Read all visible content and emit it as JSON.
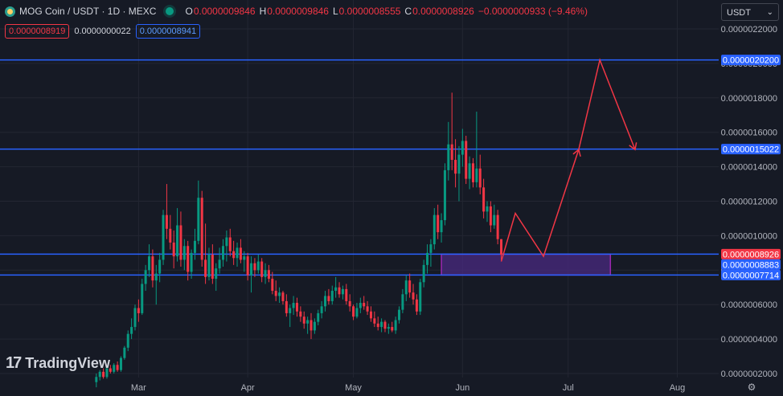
{
  "header": {
    "title": "MOG Coin / USDT · 1D · MEXC",
    "ohlc": [
      {
        "label": "O",
        "value": "0.0000009846"
      },
      {
        "label": "H",
        "value": "0.0000009846"
      },
      {
        "label": "L",
        "value": "0.0000008555"
      },
      {
        "label": "C",
        "value": "0.0000008926"
      }
    ],
    "change": "−0.0000000933 (−9.46%)",
    "bid": "0.0000008919",
    "spread": "0.0000000022",
    "ask": "0.0000008941"
  },
  "currency_select": "USDT",
  "watermark": "TradingView",
  "colors": {
    "up": "#089981",
    "down": "#f23645",
    "hline": "#2962ff",
    "zone_fill": "#4a2a80",
    "zone_border": "#9c27b0",
    "arrow": "#f23645",
    "background": "#161a25",
    "grid": "#232632"
  },
  "chart_data": {
    "type": "candlestick",
    "x_labels": [
      "Mar",
      "Apr",
      "May",
      "Jun",
      "Jul",
      "Aug"
    ],
    "y_ticks": [
      "0.0000022000",
      "0.0000020000",
      "0.0000018000",
      "0.0000016000",
      "0.0000014000",
      "0.0000012000",
      "0.0000010000",
      "0.0000008000",
      "0.0000006000",
      "0.0000004000",
      "0.0000002000"
    ],
    "y_tick_values": [
      2.2e-06,
      2e-06,
      1.8e-06,
      1.6e-06,
      1.4e-06,
      1.2e-06,
      1e-06,
      8e-07,
      6e-07,
      4e-07,
      2e-07
    ],
    "ylim": [
      1e-07,
      2.2e-06
    ],
    "price_labels": [
      {
        "value": 2.02e-06,
        "text": "0.0000020200",
        "color": "#2962ff"
      },
      {
        "value": 1.5022e-06,
        "text": "0.0000015022",
        "color": "#2962ff"
      },
      {
        "value": 8.926e-07,
        "text": "0.0000008926",
        "color": "#f23645"
      },
      {
        "value": 8.883e-07,
        "text": "0.0000008883",
        "color": "#2962ff"
      },
      {
        "value": 7.714e-07,
        "text": "0.0000007714",
        "color": "#2962ff"
      }
    ],
    "horizontal_lines": [
      2.02e-06,
      1.5022e-06,
      8.926e-07,
      7.714e-07
    ],
    "zone": {
      "from": "2024-05-26",
      "to": "2024-07-13",
      "top": 8.926e-07,
      "bottom": 7.714e-07
    },
    "projection_path": [
      [
        "2024-06-12",
        8.5e-07
      ],
      [
        "2024-06-16",
        1.13e-06
      ],
      [
        "2024-06-24",
        8.8e-07
      ],
      [
        "2024-07-04",
        1.5e-06
      ],
      [
        "2024-07-10",
        2.02e-06
      ],
      [
        "2024-07-20",
        1.5e-06
      ]
    ],
    "projection_arrows": [
      [
        "2024-06-24",
        8.8e-07,
        "2024-07-04",
        1.5e-06
      ],
      [
        "2024-07-10",
        2.02e-06,
        "2024-07-20",
        1.5e-06
      ]
    ],
    "candles": [
      {
        "date": "2024-02-18",
        "o": 1.5e-07,
        "h": 2e-07,
        "l": 1.2e-07,
        "c": 1.8e-07
      },
      {
        "date": "2024-02-19",
        "o": 1.8e-07,
        "h": 2.2e-07,
        "l": 1.6e-07,
        "c": 2.1e-07
      },
      {
        "date": "2024-02-20",
        "o": 2.1e-07,
        "h": 2.3e-07,
        "l": 1.7e-07,
        "c": 1.8e-07
      },
      {
        "date": "2024-02-21",
        "o": 1.8e-07,
        "h": 2.4e-07,
        "l": 1.7e-07,
        "c": 2.3e-07
      },
      {
        "date": "2024-02-22",
        "o": 2.3e-07,
        "h": 2.5e-07,
        "l": 2e-07,
        "c": 2.1e-07
      },
      {
        "date": "2024-02-23",
        "o": 2.1e-07,
        "h": 2.6e-07,
        "l": 2e-07,
        "c": 2.5e-07
      },
      {
        "date": "2024-02-24",
        "o": 2.5e-07,
        "h": 2.7e-07,
        "l": 2.1e-07,
        "c": 2.2e-07
      },
      {
        "date": "2024-02-25",
        "o": 2.2e-07,
        "h": 3e-07,
        "l": 2.1e-07,
        "c": 2.9e-07
      },
      {
        "date": "2024-02-26",
        "o": 2.9e-07,
        "h": 3.6e-07,
        "l": 2.8e-07,
        "c": 3.5e-07
      },
      {
        "date": "2024-02-27",
        "o": 3.5e-07,
        "h": 4.5e-07,
        "l": 3.3e-07,
        "c": 4.3e-07
      },
      {
        "date": "2024-02-28",
        "o": 4.3e-07,
        "h": 5.2e-07,
        "l": 4e-07,
        "c": 4.7e-07
      },
      {
        "date": "2024-02-29",
        "o": 4.7e-07,
        "h": 6e-07,
        "l": 4.5e-07,
        "c": 5.8e-07
      },
      {
        "date": "2024-03-01",
        "o": 5.8e-07,
        "h": 6.3e-07,
        "l": 5e-07,
        "c": 5.5e-07
      },
      {
        "date": "2024-03-02",
        "o": 5.5e-07,
        "h": 7.5e-07,
        "l": 5.4e-07,
        "c": 7.2e-07
      },
      {
        "date": "2024-03-03",
        "o": 7.2e-07,
        "h": 8.3e-07,
        "l": 6.8e-07,
        "c": 8e-07
      },
      {
        "date": "2024-03-04",
        "o": 8e-07,
        "h": 9.5e-07,
        "l": 7.6e-07,
        "c": 8.8e-07
      },
      {
        "date": "2024-03-05",
        "o": 8.8e-07,
        "h": 9.2e-07,
        "l": 7e-07,
        "c": 7.4e-07
      },
      {
        "date": "2024-03-06",
        "o": 7.4e-07,
        "h": 8.3e-07,
        "l": 6e-07,
        "c": 7.8e-07
      },
      {
        "date": "2024-03-07",
        "o": 7.8e-07,
        "h": 9e-07,
        "l": 7.3e-07,
        "c": 8.6e-07
      },
      {
        "date": "2024-03-08",
        "o": 8.6e-07,
        "h": 1.15e-06,
        "l": 8.3e-07,
        "c": 1.12e-06
      },
      {
        "date": "2024-03-09",
        "o": 1.12e-06,
        "h": 1.3e-06,
        "l": 9.8e-07,
        "c": 1.04e-06
      },
      {
        "date": "2024-03-10",
        "o": 1.04e-06,
        "h": 1.12e-06,
        "l": 9.2e-07,
        "c": 9.6e-07
      },
      {
        "date": "2024-03-11",
        "o": 9.6e-07,
        "h": 1.03e-06,
        "l": 8.1e-07,
        "c": 8.8e-07
      },
      {
        "date": "2024-03-12",
        "o": 8.8e-07,
        "h": 1.16e-06,
        "l": 8.5e-07,
        "c": 1.06e-06
      },
      {
        "date": "2024-03-13",
        "o": 1.06e-06,
        "h": 1.14e-06,
        "l": 8.2e-07,
        "c": 8.6e-07
      },
      {
        "date": "2024-03-14",
        "o": 8.6e-07,
        "h": 9.8e-07,
        "l": 8e-07,
        "c": 9.4e-07
      },
      {
        "date": "2024-03-15",
        "o": 9.4e-07,
        "h": 9.7e-07,
        "l": 7.4e-07,
        "c": 7.9e-07
      },
      {
        "date": "2024-03-16",
        "o": 7.9e-07,
        "h": 9.2e-07,
        "l": 7.5e-07,
        "c": 9e-07
      },
      {
        "date": "2024-03-17",
        "o": 9e-07,
        "h": 1.04e-06,
        "l": 8.6e-07,
        "c": 9.7e-07
      },
      {
        "date": "2024-03-18",
        "o": 9.7e-07,
        "h": 1.32e-06,
        "l": 9.5e-07,
        "c": 1.22e-06
      },
      {
        "date": "2024-03-19",
        "o": 1.22e-06,
        "h": 1.26e-06,
        "l": 8.2e-07,
        "c": 8.6e-07
      },
      {
        "date": "2024-03-20",
        "o": 8.6e-07,
        "h": 1.07e-06,
        "l": 7.2e-07,
        "c": 7.6e-07
      },
      {
        "date": "2024-03-21",
        "o": 7.6e-07,
        "h": 9.3e-07,
        "l": 7.4e-07,
        "c": 8.9e-07
      },
      {
        "date": "2024-03-22",
        "o": 8.9e-07,
        "h": 9.5e-07,
        "l": 7.2e-07,
        "c": 7.5e-07
      },
      {
        "date": "2024-03-23",
        "o": 7.5e-07,
        "h": 8.4e-07,
        "l": 6.8e-07,
        "c": 8.1e-07
      },
      {
        "date": "2024-03-24",
        "o": 8.1e-07,
        "h": 9.3e-07,
        "l": 7.8e-07,
        "c": 8.6e-07
      },
      {
        "date": "2024-03-25",
        "o": 8.6e-07,
        "h": 9.8e-07,
        "l": 8.2e-07,
        "c": 9.4e-07
      },
      {
        "date": "2024-03-26",
        "o": 9.4e-07,
        "h": 1.03e-06,
        "l": 8.5e-07,
        "c": 9.9e-07
      },
      {
        "date": "2024-03-27",
        "o": 9.9e-07,
        "h": 1.04e-06,
        "l": 8.8e-07,
        "c": 9.1e-07
      },
      {
        "date": "2024-03-28",
        "o": 9.1e-07,
        "h": 9.7e-07,
        "l": 8.3e-07,
        "c": 8.7e-07
      },
      {
        "date": "2024-03-29",
        "o": 8.7e-07,
        "h": 9.6e-07,
        "l": 8.2e-07,
        "c": 9.3e-07
      },
      {
        "date": "2024-03-30",
        "o": 9.3e-07,
        "h": 9.8e-07,
        "l": 8.4e-07,
        "c": 8.6e-07
      },
      {
        "date": "2024-03-31",
        "o": 8.6e-07,
        "h": 9.1e-07,
        "l": 7.9e-07,
        "c": 8.8e-07
      },
      {
        "date": "2024-04-01",
        "o": 8.8e-07,
        "h": 9e-07,
        "l": 7.4e-07,
        "c": 7.7e-07
      },
      {
        "date": "2024-04-02",
        "o": 7.7e-07,
        "h": 8.8e-07,
        "l": 6.7e-07,
        "c": 8.4e-07
      },
      {
        "date": "2024-04-03",
        "o": 8.4e-07,
        "h": 8.7e-07,
        "l": 7.6e-07,
        "c": 8e-07
      },
      {
        "date": "2024-04-04",
        "o": 8e-07,
        "h": 8.9e-07,
        "l": 7.8e-07,
        "c": 8.5e-07
      },
      {
        "date": "2024-04-05",
        "o": 8.5e-07,
        "h": 8.7e-07,
        "l": 7.3e-07,
        "c": 7.6e-07
      },
      {
        "date": "2024-04-06",
        "o": 7.6e-07,
        "h": 8.4e-07,
        "l": 7.2e-07,
        "c": 8e-07
      },
      {
        "date": "2024-04-07",
        "o": 8e-07,
        "h": 8.3e-07,
        "l": 7.3e-07,
        "c": 7.5e-07
      },
      {
        "date": "2024-04-08",
        "o": 7.5e-07,
        "h": 7.9e-07,
        "l": 6.6e-07,
        "c": 6.8e-07
      },
      {
        "date": "2024-04-09",
        "o": 6.8e-07,
        "h": 7.4e-07,
        "l": 6.2e-07,
        "c": 6.5e-07
      },
      {
        "date": "2024-04-10",
        "o": 6.5e-07,
        "h": 7e-07,
        "l": 6.1e-07,
        "c": 6.7e-07
      },
      {
        "date": "2024-04-11",
        "o": 6.7e-07,
        "h": 6.8e-07,
        "l": 6e-07,
        "c": 6.2e-07
      },
      {
        "date": "2024-04-12",
        "o": 6.2e-07,
        "h": 6.6e-07,
        "l": 5.3e-07,
        "c": 5.5e-07
      },
      {
        "date": "2024-04-13",
        "o": 5.5e-07,
        "h": 6e-07,
        "l": 4.7e-07,
        "c": 5.8e-07
      },
      {
        "date": "2024-04-14",
        "o": 5.8e-07,
        "h": 6.5e-07,
        "l": 5.4e-07,
        "c": 6.1e-07
      },
      {
        "date": "2024-04-15",
        "o": 6.1e-07,
        "h": 6.4e-07,
        "l": 5.3e-07,
        "c": 5.6e-07
      },
      {
        "date": "2024-04-16",
        "o": 5.6e-07,
        "h": 5.9e-07,
        "l": 5e-07,
        "c": 5.3e-07
      },
      {
        "date": "2024-04-17",
        "o": 5.3e-07,
        "h": 5.6e-07,
        "l": 4.6e-07,
        "c": 4.9e-07
      },
      {
        "date": "2024-04-18",
        "o": 4.9e-07,
        "h": 5.3e-07,
        "l": 4.3e-07,
        "c": 5.1e-07
      },
      {
        "date": "2024-04-19",
        "o": 5.1e-07,
        "h": 5.5e-07,
        "l": 4e-07,
        "c": 4.5e-07
      },
      {
        "date": "2024-04-20",
        "o": 4.5e-07,
        "h": 5.2e-07,
        "l": 4.3e-07,
        "c": 5e-07
      },
      {
        "date": "2024-04-21",
        "o": 5e-07,
        "h": 5.7e-07,
        "l": 4.8e-07,
        "c": 5.5e-07
      },
      {
        "date": "2024-04-22",
        "o": 5.5e-07,
        "h": 6.2e-07,
        "l": 5.2e-07,
        "c": 5.9e-07
      },
      {
        "date": "2024-04-23",
        "o": 5.9e-07,
        "h": 6.8e-07,
        "l": 5.6e-07,
        "c": 6.5e-07
      },
      {
        "date": "2024-04-24",
        "o": 6.5e-07,
        "h": 6.9e-07,
        "l": 6e-07,
        "c": 6.2e-07
      },
      {
        "date": "2024-04-25",
        "o": 6.2e-07,
        "h": 7.1e-07,
        "l": 6e-07,
        "c": 6.8e-07
      },
      {
        "date": "2024-04-26",
        "o": 6.8e-07,
        "h": 7.6e-07,
        "l": 6.4e-07,
        "c": 7e-07
      },
      {
        "date": "2024-04-27",
        "o": 7e-07,
        "h": 7.3e-07,
        "l": 6.4e-07,
        "c": 6.6e-07
      },
      {
        "date": "2024-04-28",
        "o": 6.6e-07,
        "h": 7.1e-07,
        "l": 6.3e-07,
        "c": 6.9e-07
      },
      {
        "date": "2024-04-29",
        "o": 6.9e-07,
        "h": 7.2e-07,
        "l": 6e-07,
        "c": 6.2e-07
      },
      {
        "date": "2024-04-30",
        "o": 6.2e-07,
        "h": 6.6e-07,
        "l": 5.6e-07,
        "c": 5.9e-07
      },
      {
        "date": "2024-05-01",
        "o": 5.9e-07,
        "h": 6e-07,
        "l": 5.1e-07,
        "c": 5.3e-07
      },
      {
        "date": "2024-05-02",
        "o": 5.3e-07,
        "h": 6.1e-07,
        "l": 5.2e-07,
        "c": 5.8e-07
      },
      {
        "date": "2024-05-03",
        "o": 5.8e-07,
        "h": 6.4e-07,
        "l": 5.5e-07,
        "c": 6.1e-07
      },
      {
        "date": "2024-05-04",
        "o": 6.1e-07,
        "h": 6.5e-07,
        "l": 5.7e-07,
        "c": 5.9e-07
      },
      {
        "date": "2024-05-05",
        "o": 5.9e-07,
        "h": 6.2e-07,
        "l": 5.4e-07,
        "c": 5.6e-07
      },
      {
        "date": "2024-05-06",
        "o": 5.6e-07,
        "h": 5.9e-07,
        "l": 5e-07,
        "c": 5.2e-07
      },
      {
        "date": "2024-05-07",
        "o": 5.2e-07,
        "h": 5.6e-07,
        "l": 4.7e-07,
        "c": 4.9e-07
      },
      {
        "date": "2024-05-08",
        "o": 4.9e-07,
        "h": 5.3e-07,
        "l": 4.5e-07,
        "c": 4.7e-07
      },
      {
        "date": "2024-05-09",
        "o": 4.7e-07,
        "h": 5.2e-07,
        "l": 4.4e-07,
        "c": 5e-07
      },
      {
        "date": "2024-05-10",
        "o": 5e-07,
        "h": 5.1e-07,
        "l": 4.4e-07,
        "c": 4.6e-07
      },
      {
        "date": "2024-05-11",
        "o": 4.6e-07,
        "h": 4.9e-07,
        "l": 4.3e-07,
        "c": 4.7e-07
      },
      {
        "date": "2024-05-12",
        "o": 4.7e-07,
        "h": 5e-07,
        "l": 4.4e-07,
        "c": 4.5e-07
      },
      {
        "date": "2024-05-13",
        "o": 4.5e-07,
        "h": 5.3e-07,
        "l": 4.3e-07,
        "c": 5.1e-07
      },
      {
        "date": "2024-05-14",
        "o": 5.1e-07,
        "h": 5.9e-07,
        "l": 4.9e-07,
        "c": 5.7e-07
      },
      {
        "date": "2024-05-15",
        "o": 5.7e-07,
        "h": 6.9e-07,
        "l": 5.5e-07,
        "c": 6.6e-07
      },
      {
        "date": "2024-05-16",
        "o": 6.6e-07,
        "h": 7.7e-07,
        "l": 6.2e-07,
        "c": 7.4e-07
      },
      {
        "date": "2024-05-17",
        "o": 7.4e-07,
        "h": 7.8e-07,
        "l": 6.4e-07,
        "c": 6.7e-07
      },
      {
        "date": "2024-05-18",
        "o": 6.7e-07,
        "h": 7.2e-07,
        "l": 6e-07,
        "c": 6.3e-07
      },
      {
        "date": "2024-05-19",
        "o": 6.3e-07,
        "h": 6.6e-07,
        "l": 5.4e-07,
        "c": 5.6e-07
      },
      {
        "date": "2024-05-20",
        "o": 5.6e-07,
        "h": 7.5e-07,
        "l": 5.4e-07,
        "c": 7.3e-07
      },
      {
        "date": "2024-05-21",
        "o": 7.3e-07,
        "h": 8.6e-07,
        "l": 7e-07,
        "c": 8.3e-07
      },
      {
        "date": "2024-05-22",
        "o": 8.3e-07,
        "h": 9.5e-07,
        "l": 7.8e-07,
        "c": 9e-07
      },
      {
        "date": "2024-05-23",
        "o": 9e-07,
        "h": 9.8e-07,
        "l": 8.2e-07,
        "c": 9.5e-07
      },
      {
        "date": "2024-05-24",
        "o": 9.5e-07,
        "h": 1.16e-06,
        "l": 9.2e-07,
        "c": 1.12e-06
      },
      {
        "date": "2024-05-25",
        "o": 1.12e-06,
        "h": 1.18e-06,
        "l": 9.8e-07,
        "c": 1.02e-06
      },
      {
        "date": "2024-05-26",
        "o": 1.02e-06,
        "h": 1.13e-06,
        "l": 9.6e-07,
        "c": 1.09e-06
      },
      {
        "date": "2024-05-27",
        "o": 1.09e-06,
        "h": 1.42e-06,
        "l": 1.06e-06,
        "c": 1.38e-06
      },
      {
        "date": "2024-05-28",
        "o": 1.38e-06,
        "h": 1.66e-06,
        "l": 1.32e-06,
        "c": 1.53e-06
      },
      {
        "date": "2024-05-29",
        "o": 1.53e-06,
        "h": 1.83e-06,
        "l": 1.38e-06,
        "c": 1.44e-06
      },
      {
        "date": "2024-05-30",
        "o": 1.44e-06,
        "h": 1.56e-06,
        "l": 1.28e-06,
        "c": 1.36e-06
      },
      {
        "date": "2024-05-31",
        "o": 1.36e-06,
        "h": 1.52e-06,
        "l": 1.2e-06,
        "c": 1.47e-06
      },
      {
        "date": "2024-06-01",
        "o": 1.47e-06,
        "h": 1.62e-06,
        "l": 1.4e-06,
        "c": 1.55e-06
      },
      {
        "date": "2024-06-02",
        "o": 1.55e-06,
        "h": 1.58e-06,
        "l": 1.3e-06,
        "c": 1.33e-06
      },
      {
        "date": "2024-06-03",
        "o": 1.33e-06,
        "h": 1.46e-06,
        "l": 1.27e-06,
        "c": 1.42e-06
      },
      {
        "date": "2024-06-04",
        "o": 1.42e-06,
        "h": 1.45e-06,
        "l": 1.28e-06,
        "c": 1.31e-06
      },
      {
        "date": "2024-06-05",
        "o": 1.31e-06,
        "h": 1.72e-06,
        "l": 1.28e-06,
        "c": 1.39e-06
      },
      {
        "date": "2024-06-06",
        "o": 1.39e-06,
        "h": 1.47e-06,
        "l": 1.24e-06,
        "c": 1.28e-06
      },
      {
        "date": "2024-06-07",
        "o": 1.28e-06,
        "h": 1.33e-06,
        "l": 1.1e-06,
        "c": 1.14e-06
      },
      {
        "date": "2024-06-08",
        "o": 1.14e-06,
        "h": 1.2e-06,
        "l": 1.08e-06,
        "c": 1.17e-06
      },
      {
        "date": "2024-06-09",
        "o": 1.17e-06,
        "h": 1.2e-06,
        "l": 1.02e-06,
        "c": 1.06e-06
      },
      {
        "date": "2024-06-10",
        "o": 1.06e-06,
        "h": 1.18e-06,
        "l": 1.04e-06,
        "c": 1.12e-06
      },
      {
        "date": "2024-06-11",
        "o": 1.12e-06,
        "h": 1.15e-06,
        "l": 9.5e-07,
        "c": 9.8e-07
      },
      {
        "date": "2024-06-12",
        "o": 9.8e-07,
        "h": 9.8e-07,
        "l": 8.6e-07,
        "c": 8.9e-07
      }
    ]
  }
}
